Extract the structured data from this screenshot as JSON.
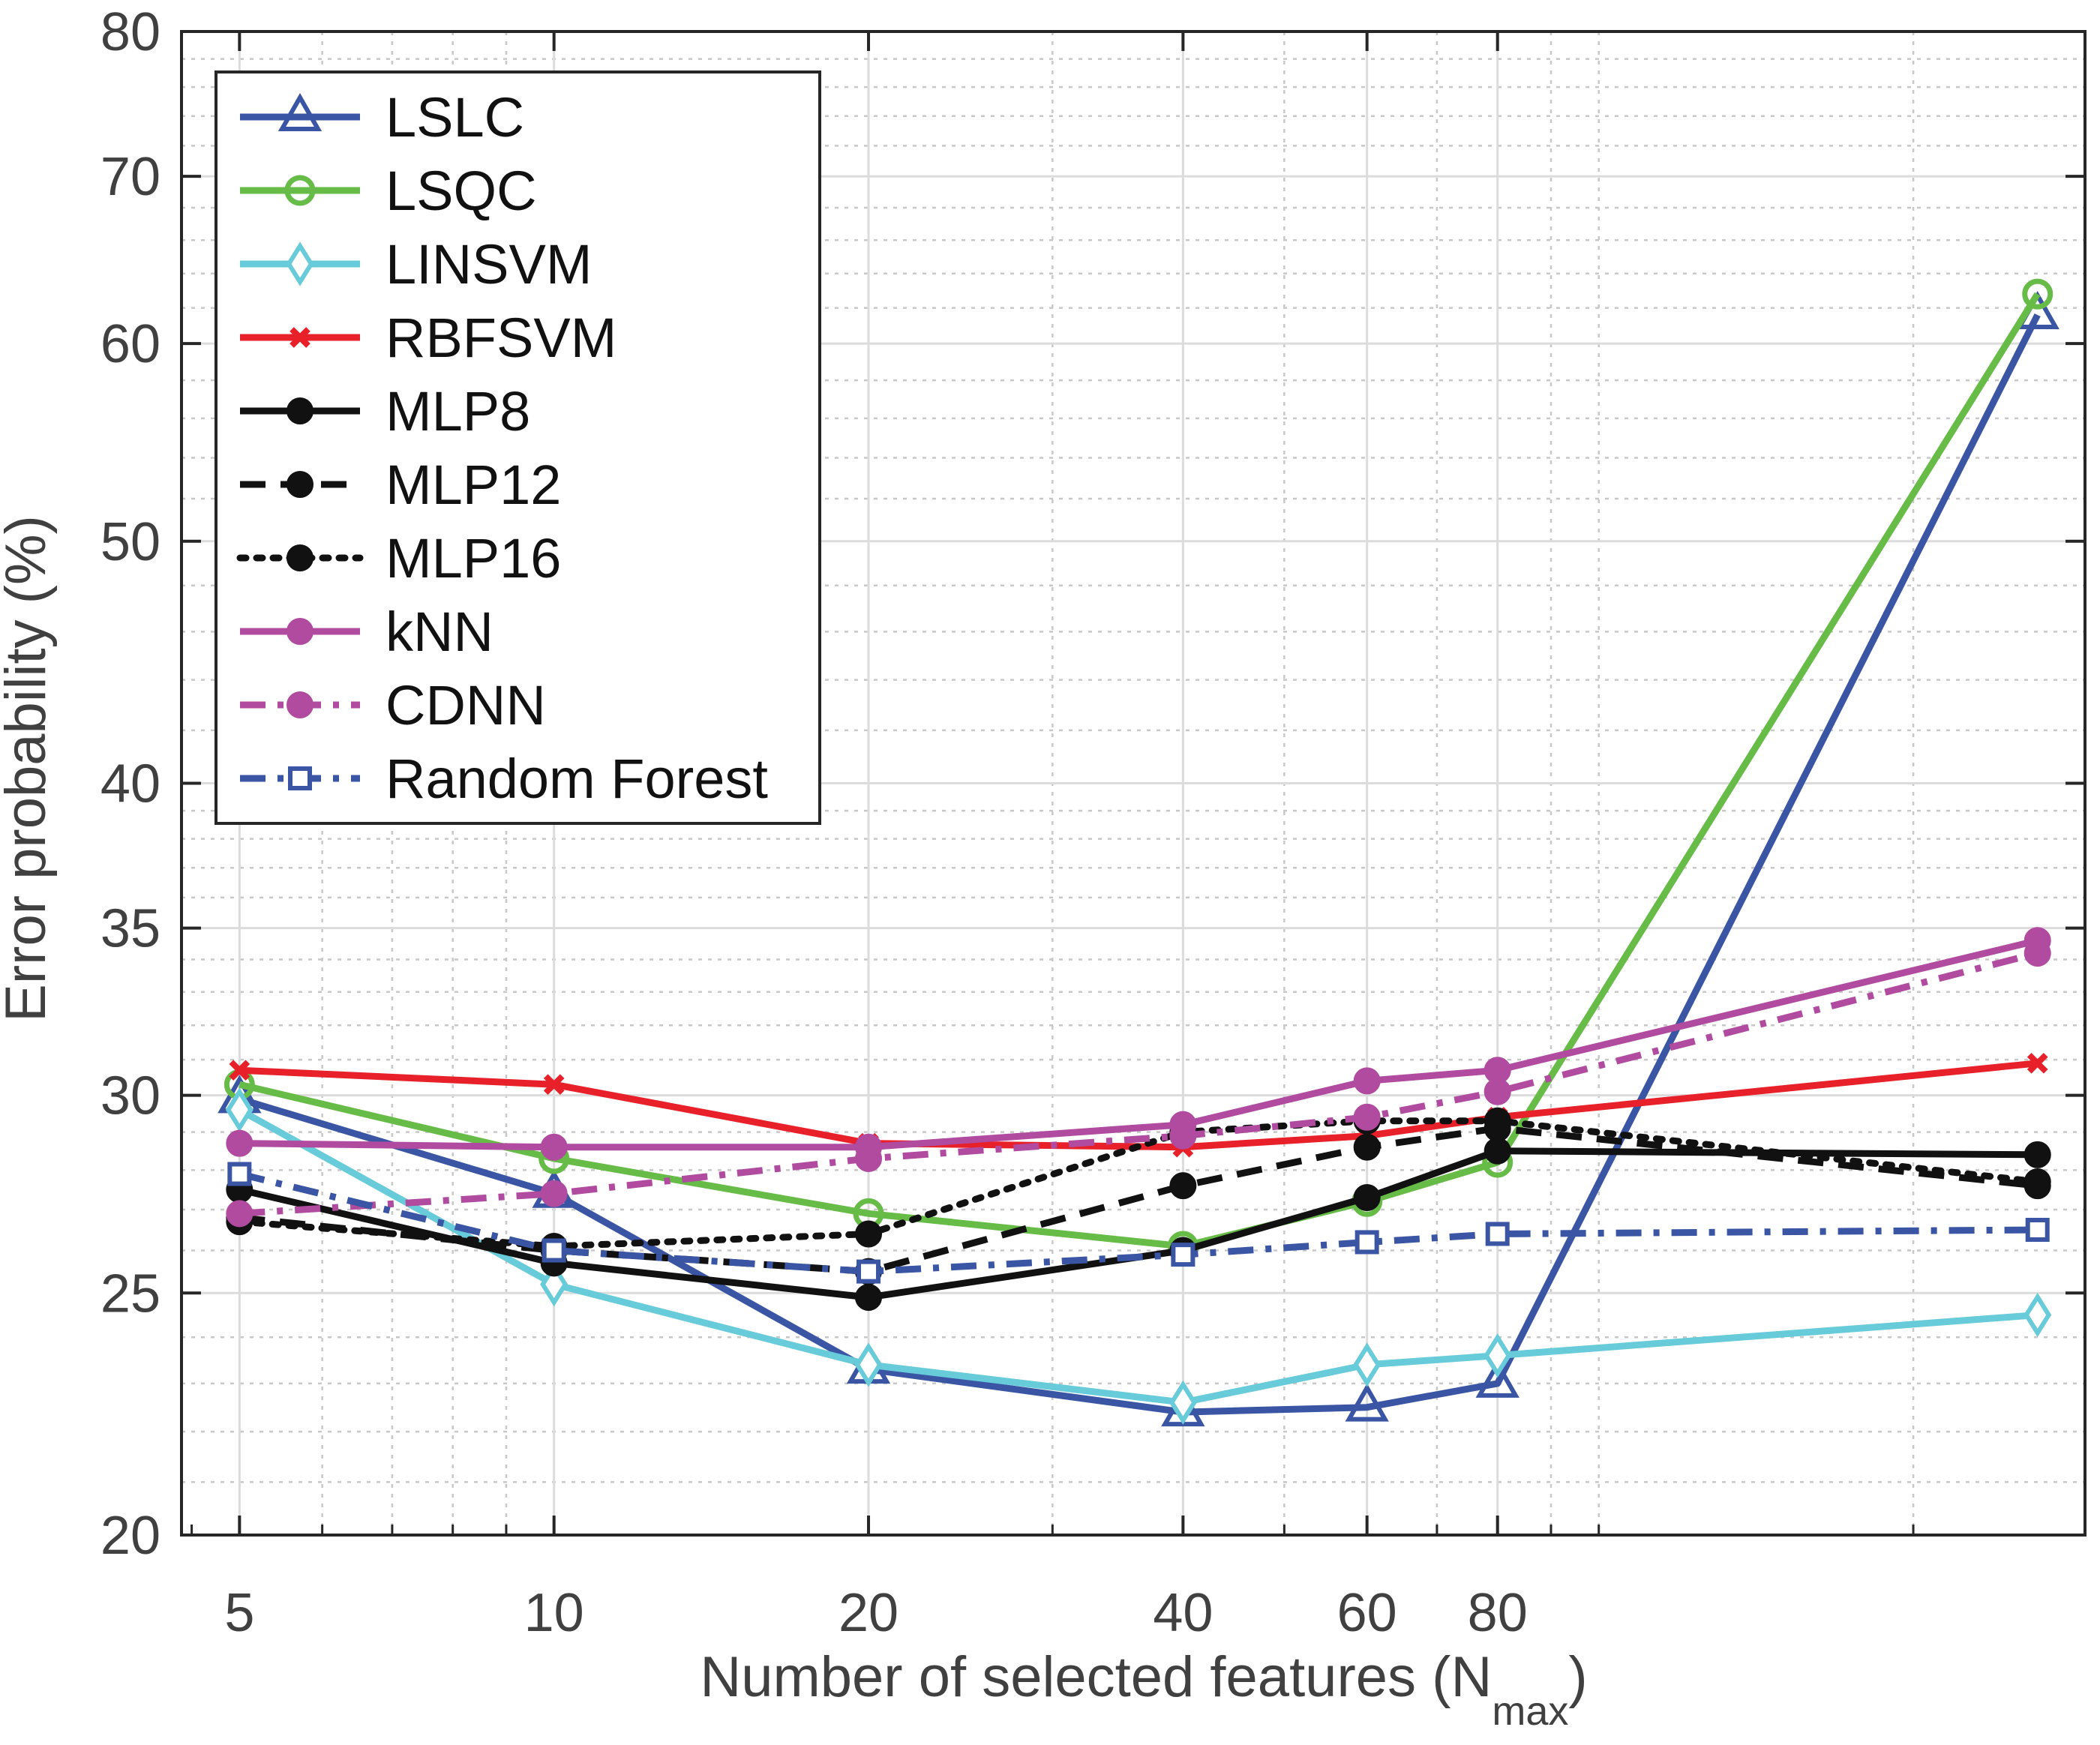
{
  "chart_data": {
    "type": "line",
    "title": "",
    "xlabel": "Number of selected features (N",
    "xlabel_sub": "max",
    "xlabel_close": ")",
    "ylabel": "Error probability (%)",
    "x_scale": "log",
    "y_scale": "log",
    "xlim": [
      4.4,
      292
    ],
    "ylim": [
      20,
      80
    ],
    "x": [
      5,
      10,
      20,
      40,
      60,
      80,
      263
    ],
    "xticks": [
      5,
      10,
      20,
      40,
      60,
      80
    ],
    "xtick_labels": [
      "5",
      "10",
      "20",
      "40",
      "60",
      "80"
    ],
    "yticks": [
      20,
      25,
      30,
      35,
      40,
      50,
      60,
      70,
      80
    ],
    "ytick_labels": [
      "20",
      "25",
      "30",
      "35",
      "40",
      "50",
      "60",
      "70",
      "80"
    ],
    "grid": true,
    "legend_position": "top-left",
    "series": [
      {
        "name": "LSLC",
        "color": "#3a55a4",
        "dash": "solid",
        "marker": "triangle",
        "values": [
          29.9,
          27.4,
          23.3,
          22.4,
          22.5,
          23.0,
          61.6
        ]
      },
      {
        "name": "LSQC",
        "color": "#66bc46",
        "dash": "solid",
        "marker": "circle-open",
        "values": [
          30.3,
          28.3,
          26.9,
          26.1,
          27.2,
          28.2,
          62.8
        ]
      },
      {
        "name": "LINSVM",
        "color": "#68cbd9",
        "dash": "solid",
        "marker": "diamond",
        "values": [
          29.6,
          25.2,
          23.4,
          22.6,
          23.4,
          23.6,
          24.5
        ]
      },
      {
        "name": "RBFSVM",
        "color": "#e8202a",
        "dash": "solid",
        "marker": "x",
        "values": [
          30.7,
          30.3,
          28.7,
          28.6,
          28.9,
          29.4,
          30.9
        ]
      },
      {
        "name": "MLP8",
        "color": "#111111",
        "dash": "solid",
        "marker": "dot",
        "values": [
          27.5,
          25.7,
          24.9,
          26.0,
          27.3,
          28.5,
          28.4
        ]
      },
      {
        "name": "MLP12",
        "color": "#111111",
        "dash": "dashed",
        "marker": "dot",
        "values": [
          26.8,
          26.0,
          25.5,
          27.6,
          28.6,
          29.1,
          27.6
        ]
      },
      {
        "name": "MLP16",
        "color": "#111111",
        "dash": "dotted",
        "marker": "dot",
        "values": [
          26.7,
          26.1,
          26.4,
          29.0,
          29.3,
          29.3,
          27.7
        ]
      },
      {
        "name": "kNN",
        "color": "#b04ba0",
        "dash": "solid",
        "marker": "dot",
        "values": [
          28.7,
          28.6,
          28.6,
          29.2,
          30.4,
          30.7,
          34.6
        ]
      },
      {
        "name": "CDNN",
        "color": "#b04ba0",
        "dash": "dashdot",
        "marker": "dot",
        "values": [
          26.9,
          27.4,
          28.3,
          28.9,
          29.4,
          30.1,
          34.2
        ]
      },
      {
        "name": "Random Forest",
        "color": "#3a55a4",
        "dash": "dashdot",
        "marker": "square",
        "values": [
          27.9,
          26.0,
          25.5,
          25.9,
          26.2,
          26.4,
          26.5
        ]
      }
    ]
  }
}
